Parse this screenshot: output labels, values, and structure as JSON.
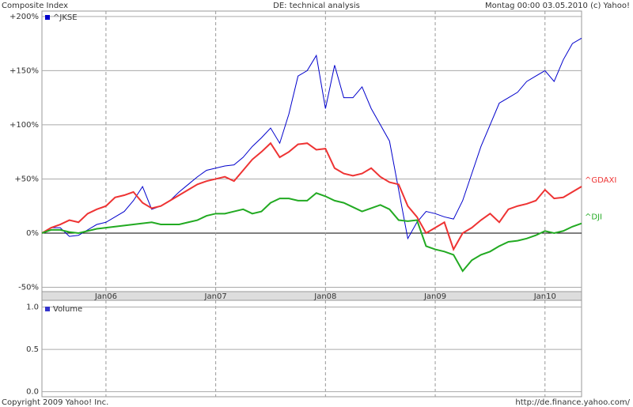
{
  "header": {
    "left": "Composite Index",
    "center": "DE: technical analysis",
    "right": "Montag 00:00 03.05.2010 (c) Yahoo!"
  },
  "footer": {
    "left": "Copyright 2009 Yahoo! Inc.",
    "right": "http://de.finance.yahoo.com/"
  },
  "chart_data": {
    "type": "line",
    "x": [
      "2005-06",
      "2005-07",
      "2005-08",
      "2005-09",
      "2005-10",
      "2005-11",
      "2005-12",
      "2006-01",
      "2006-02",
      "2006-03",
      "2006-04",
      "2006-05",
      "2006-06",
      "2006-07",
      "2006-08",
      "2006-09",
      "2006-10",
      "2006-11",
      "2006-12",
      "2007-01",
      "2007-02",
      "2007-03",
      "2007-04",
      "2007-05",
      "2007-06",
      "2007-07",
      "2007-08",
      "2007-09",
      "2007-10",
      "2007-11",
      "2007-12",
      "2008-01",
      "2008-02",
      "2008-03",
      "2008-04",
      "2008-05",
      "2008-06",
      "2008-07",
      "2008-08",
      "2008-09",
      "2008-10",
      "2008-11",
      "2008-12",
      "2009-01",
      "2009-02",
      "2009-03",
      "2009-04",
      "2009-05",
      "2009-06",
      "2009-07",
      "2009-08",
      "2009-09",
      "2009-10",
      "2009-11",
      "2009-12",
      "2010-01",
      "2010-02",
      "2010-03",
      "2010-04",
      "2010-05"
    ],
    "series": [
      {
        "name": "^JKSE",
        "color": "#0000cc",
        "values": [
          0,
          5,
          5,
          -3,
          -2,
          3,
          8,
          10,
          15,
          20,
          30,
          43,
          22,
          25,
          30,
          38,
          45,
          52,
          58,
          60,
          62,
          63,
          70,
          80,
          88,
          97,
          83,
          110,
          145,
          150,
          164,
          115,
          155,
          125,
          125,
          135,
          115,
          100,
          85,
          40,
          -5,
          10,
          20,
          18,
          15,
          13,
          30,
          55,
          80,
          100,
          120,
          125,
          130,
          140,
          145,
          150,
          140,
          160,
          175,
          180
        ]
      },
      {
        "name": "^GDAXI",
        "color": "#ee3333",
        "values": [
          0,
          5,
          8,
          12,
          10,
          18,
          22,
          25,
          33,
          35,
          38,
          28,
          23,
          25,
          30,
          35,
          40,
          45,
          48,
          50,
          52,
          48,
          58,
          68,
          75,
          83,
          70,
          75,
          82,
          83,
          77,
          78,
          60,
          55,
          53,
          55,
          60,
          52,
          47,
          45,
          25,
          15,
          0,
          5,
          10,
          -15,
          0,
          5,
          12,
          18,
          10,
          22,
          25,
          27,
          30,
          40,
          32,
          33,
          38,
          43
        ]
      },
      {
        "name": "^DJI",
        "color": "#22aa22",
        "values": [
          0,
          3,
          3,
          1,
          0,
          2,
          4,
          5,
          6,
          7,
          8,
          9,
          10,
          8,
          8,
          8,
          10,
          12,
          16,
          18,
          18,
          20,
          22,
          18,
          20,
          28,
          32,
          32,
          30,
          30,
          37,
          34,
          30,
          28,
          24,
          20,
          23,
          26,
          22,
          12,
          11,
          12,
          -12,
          -15,
          -17,
          -20,
          -35,
          -25,
          -20,
          -17,
          -12,
          -8,
          -7,
          -5,
          -2,
          2,
          0,
          2,
          6,
          9
        ]
      }
    ],
    "xlim": [
      "2005-06",
      "2010-05"
    ],
    "xticks": [
      {
        "value": "2006-01",
        "label": "Jan06"
      },
      {
        "value": "2007-01",
        "label": "Jan07"
      },
      {
        "value": "2008-01",
        "label": "Jan08"
      },
      {
        "value": "2009-01",
        "label": "Jan09"
      },
      {
        "value": "2010-01",
        "label": "Jan10"
      }
    ],
    "ylim": [
      -54,
      205
    ],
    "yticks": [
      {
        "value": -50,
        "label": "-50%"
      },
      {
        "value": 0,
        "label": "0%"
      },
      {
        "value": 50,
        "label": "+50%"
      },
      {
        "value": 100,
        "label": "+100%"
      },
      {
        "value": 150,
        "label": "+150%"
      },
      {
        "value": 200,
        "label": "+200%"
      }
    ],
    "grid": true
  },
  "volume": {
    "legend": "Volume",
    "color": "#3333cc",
    "ylim": [
      -0.06,
      1.08
    ],
    "yticks": [
      {
        "value": 0,
        "label": "0.0"
      },
      {
        "value": 0.5,
        "label": "0.5"
      },
      {
        "value": 1,
        "label": "1.0"
      }
    ]
  }
}
